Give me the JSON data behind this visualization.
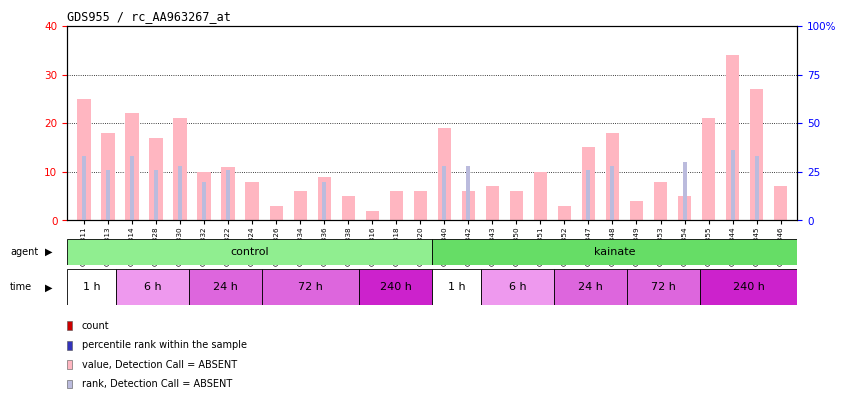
{
  "title": "GDS955 / rc_AA963267_at",
  "samples": [
    "GSM19311",
    "GSM19313",
    "GSM19314",
    "GSM19328",
    "GSM19330",
    "GSM19332",
    "GSM19322",
    "GSM19324",
    "GSM19326",
    "GSM19334",
    "GSM19336",
    "GSM19338",
    "GSM19316",
    "GSM19318",
    "GSM19320",
    "GSM19340",
    "GSM19342",
    "GSM19343",
    "GSM19350",
    "GSM19351",
    "GSM19352",
    "GSM19347",
    "GSM19348",
    "GSM19349",
    "GSM19353",
    "GSM19354",
    "GSM19355",
    "GSM19344",
    "GSM19345",
    "GSM19346"
  ],
  "values": [
    25,
    18,
    22,
    17,
    21,
    10,
    11,
    8,
    3,
    6,
    9,
    5,
    2,
    6,
    6,
    19,
    6,
    7,
    6,
    10,
    3,
    15,
    18,
    4,
    8,
    5,
    21,
    34,
    27,
    7
  ],
  "ranks": [
    33,
    26,
    33,
    26,
    28,
    20,
    26,
    0,
    0,
    0,
    20,
    0,
    0,
    0,
    0,
    28,
    28,
    0,
    0,
    0,
    0,
    26,
    28,
    0,
    0,
    30,
    0,
    36,
    33,
    0
  ],
  "ylim_left": [
    0,
    40
  ],
  "ylim_right": [
    0,
    100
  ],
  "yticks_left": [
    0,
    10,
    20,
    30,
    40
  ],
  "yticks_right": [
    0,
    25,
    50,
    75,
    100
  ],
  "agent_groups": [
    {
      "label": "control",
      "start": 0,
      "end": 15,
      "color": "#90EE90"
    },
    {
      "label": "kainate",
      "start": 15,
      "end": 30,
      "color": "#66DD66"
    }
  ],
  "time_groups": [
    {
      "label": "1 h",
      "start": 0,
      "end": 2,
      "color": "#FFFFFF"
    },
    {
      "label": "6 h",
      "start": 2,
      "end": 5,
      "color": "#EE99EE"
    },
    {
      "label": "24 h",
      "start": 5,
      "end": 8,
      "color": "#DD66DD"
    },
    {
      "label": "72 h",
      "start": 8,
      "end": 12,
      "color": "#DD66DD"
    },
    {
      "label": "240 h",
      "start": 12,
      "end": 15,
      "color": "#CC22CC"
    },
    {
      "label": "1 h",
      "start": 15,
      "end": 17,
      "color": "#FFFFFF"
    },
    {
      "label": "6 h",
      "start": 17,
      "end": 20,
      "color": "#EE99EE"
    },
    {
      "label": "24 h",
      "start": 20,
      "end": 23,
      "color": "#DD66DD"
    },
    {
      "label": "72 h",
      "start": 23,
      "end": 26,
      "color": "#DD66DD"
    },
    {
      "label": "240 h",
      "start": 26,
      "end": 30,
      "color": "#CC22CC"
    }
  ],
  "bar_width": 0.55,
  "absent_value_color": "#FFB6C1",
  "absent_rank_color": "#BBBBDD",
  "bg_color": "#FFFFFF",
  "legend_items": [
    {
      "label": "count",
      "color": "#CC0000",
      "marker": "square"
    },
    {
      "label": "percentile rank within the sample",
      "color": "#3333BB",
      "marker": "square"
    },
    {
      "label": "value, Detection Call = ABSENT",
      "color": "#FFB6C1",
      "marker": "square"
    },
    {
      "label": "rank, Detection Call = ABSENT",
      "color": "#BBBBDD",
      "marker": "square"
    }
  ]
}
